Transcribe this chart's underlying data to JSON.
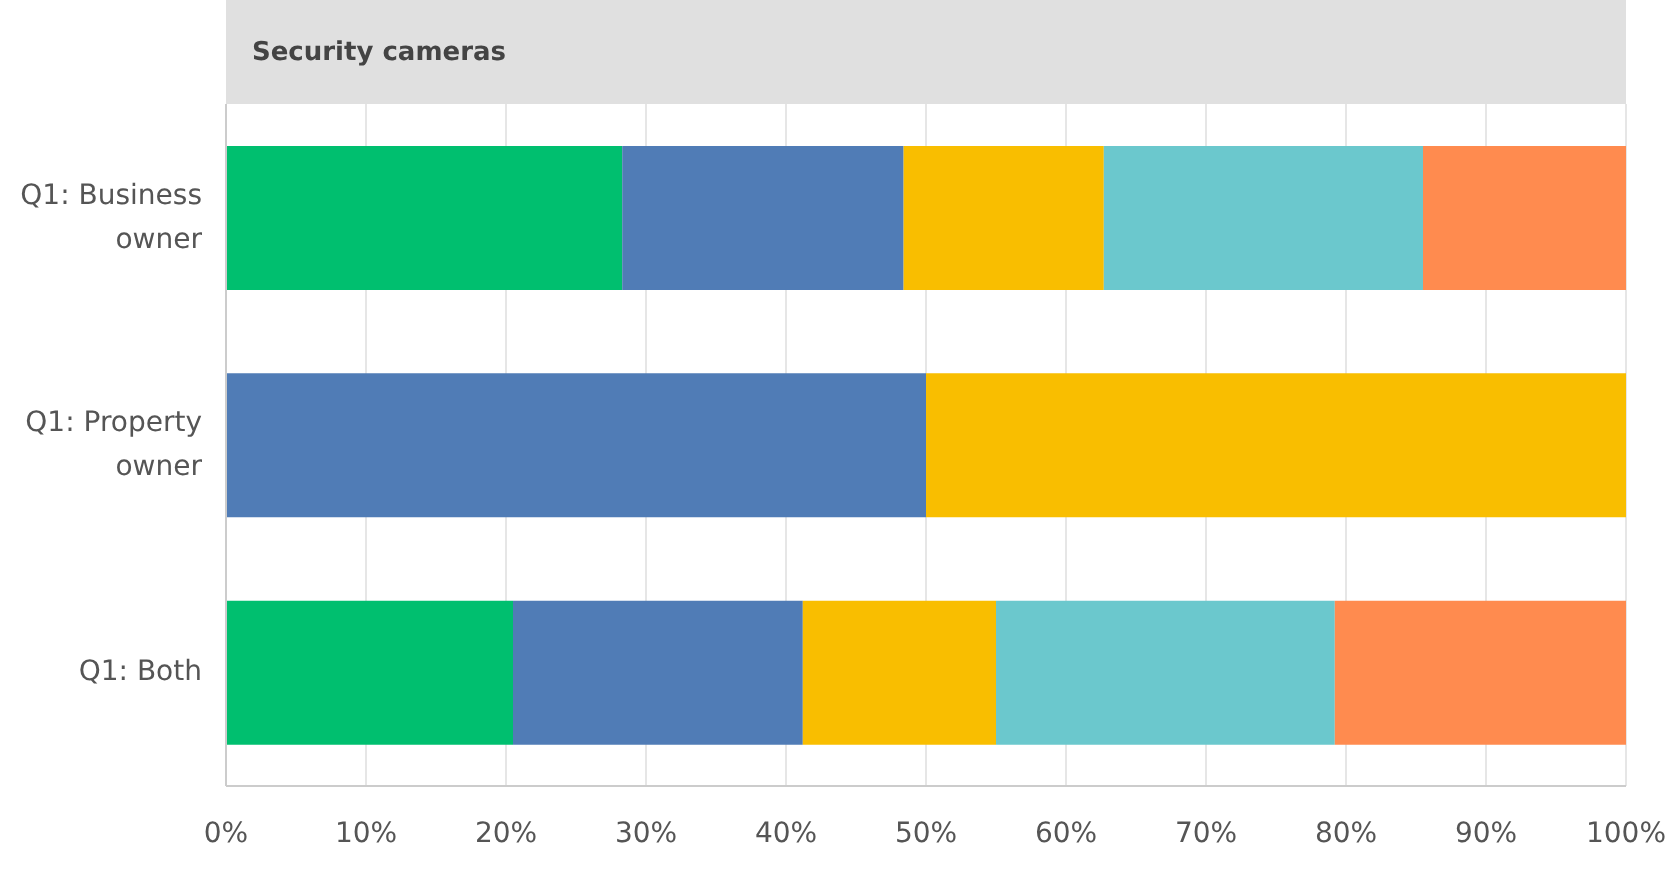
{
  "chart_data": {
    "type": "bar",
    "orientation": "horizontal",
    "stacked": true,
    "title": "Security cameras",
    "categories": [
      "Q1: Business owner",
      "Q1: Property owner",
      "Q1: Both"
    ],
    "series": [
      {
        "color": "#00bf6f",
        "values": [
          28.3,
          0,
          20.5
        ]
      },
      {
        "color": "#507cb6",
        "values": [
          20.1,
          50,
          20.7
        ]
      },
      {
        "color": "#f9be00",
        "values": [
          14.3,
          50,
          13.8
        ]
      },
      {
        "color": "#6bc8cd",
        "values": [
          22.8,
          0,
          24.2
        ]
      },
      {
        "color": "#ff8b4f",
        "values": [
          14.5,
          0,
          20.8
        ]
      }
    ],
    "xlim": [
      0,
      100
    ],
    "xticks": [
      {
        "value": 0,
        "label": "0%"
      },
      {
        "value": 10,
        "label": "10%"
      },
      {
        "value": 20,
        "label": "20%"
      },
      {
        "value": 30,
        "label": "30%"
      },
      {
        "value": 40,
        "label": "40%"
      },
      {
        "value": 50,
        "label": "50%"
      },
      {
        "value": 60,
        "label": "60%"
      },
      {
        "value": 70,
        "label": "70%"
      },
      {
        "value": 80,
        "label": "80%"
      },
      {
        "value": 90,
        "label": "90%"
      },
      {
        "value": 100,
        "label": "100%"
      }
    ],
    "grid": "x",
    "legend": false
  }
}
